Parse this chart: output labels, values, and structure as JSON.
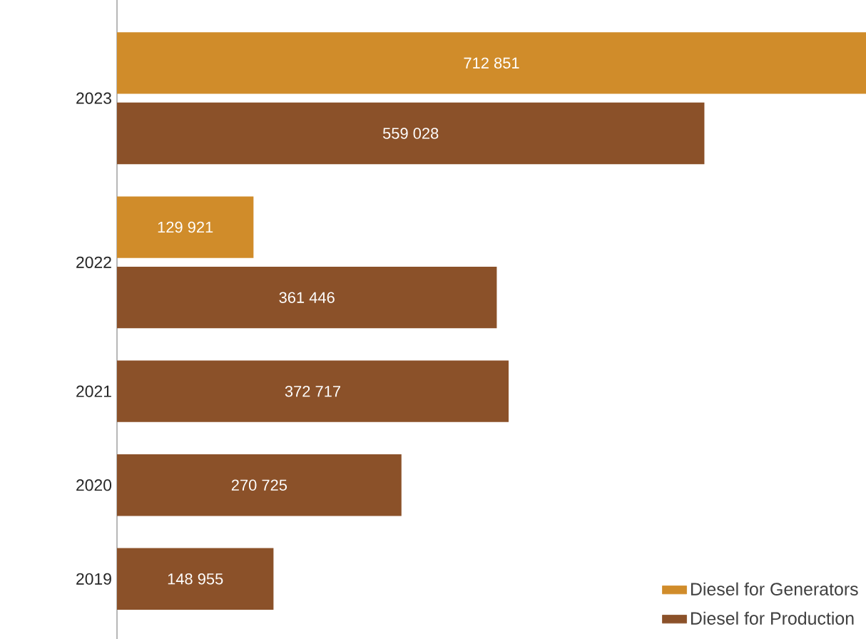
{
  "chart_data": {
    "type": "bar",
    "orientation": "horizontal",
    "categories": [
      "2023",
      "2022",
      "2021",
      "2020",
      "2019"
    ],
    "series": [
      {
        "name": "Diesel for Generators",
        "color": "#d08c2a",
        "values": [
          712851,
          129921,
          null,
          null,
          null
        ],
        "value_labels": [
          "712 851",
          "129 921",
          null,
          null,
          null
        ]
      },
      {
        "name": "Diesel for Production",
        "color": "#8b5129",
        "values": [
          559028,
          361446,
          372717,
          270725,
          148955
        ],
        "value_labels": [
          "559 028",
          "361 446",
          "372 717",
          "270 725",
          "148 955"
        ]
      }
    ],
    "legend": "bottom right"
  }
}
